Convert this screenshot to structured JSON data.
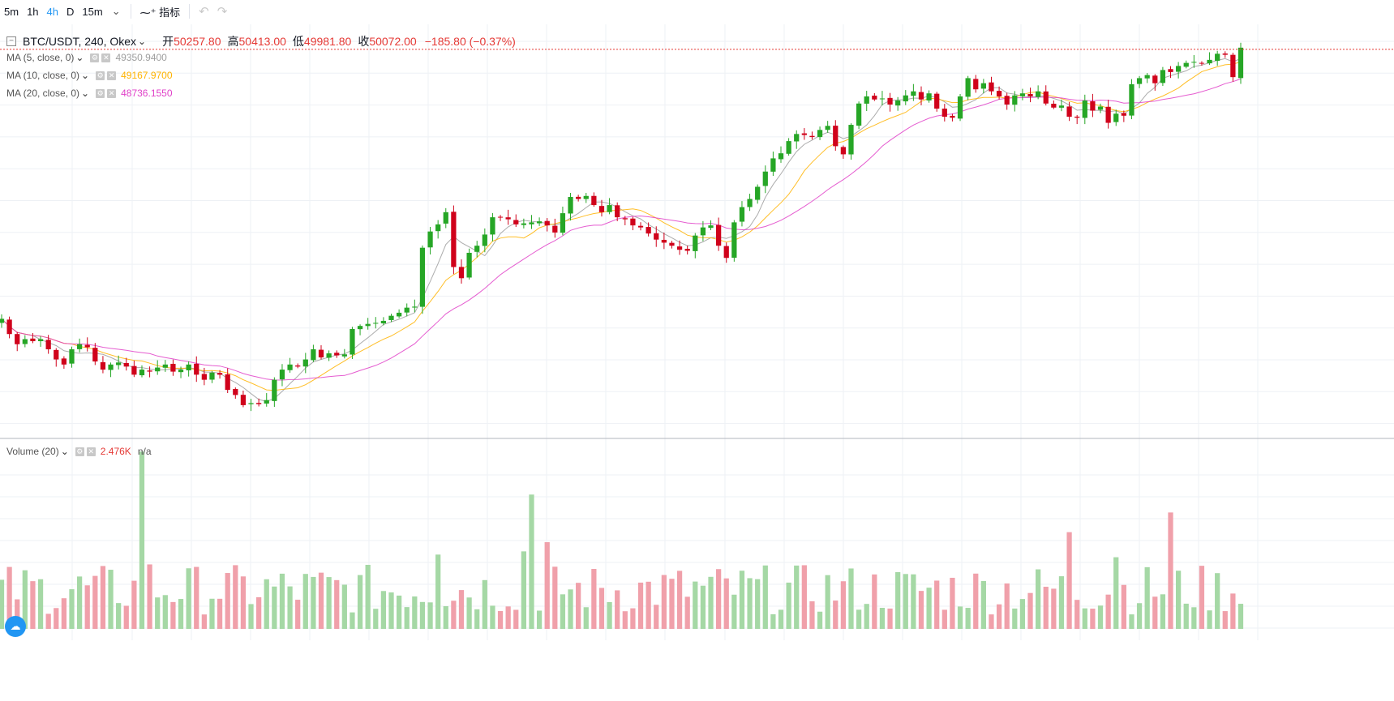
{
  "toolbar": {
    "intervals": [
      "5m",
      "1h",
      "4h",
      "D",
      "15m"
    ],
    "active_interval": "4h",
    "indicators_label": "指标"
  },
  "symbol": {
    "title": "BTC/USDT, 240, Okex",
    "open_label": "开",
    "open": "50257.80",
    "high_label": "高",
    "high": "50413.00",
    "low_label": "低",
    "low": "49981.80",
    "close_label": "收",
    "close": "50072.00",
    "change": "−185.80 (−0.37%)"
  },
  "studies": [
    {
      "label": "MA (5, close, 0)",
      "value": "49350.9400",
      "color": "#9e9e9e"
    },
    {
      "label": "MA (10, close, 0)",
      "value": "49167.9700",
      "color": "#ffb300"
    },
    {
      "label": "MA (20, close, 0)",
      "value": "48736.1550",
      "color": "#e040c8"
    }
  ],
  "volume": {
    "label": "Volume (20)",
    "value": "2.476K",
    "na": "n/a"
  },
  "colors": {
    "up": "#26a626",
    "down": "#d0021b",
    "vol_up": "#a5d8a5",
    "vol_down": "#f0a0aa",
    "last_price_line": "#e53935"
  },
  "chart_data": {
    "type": "candlestick",
    "series_close": [
      50400,
      50250,
      50150,
      50200,
      50180,
      50200,
      50100,
      50000,
      49950,
      50100,
      50150,
      50120,
      49980,
      49900,
      49950,
      49970,
      49930,
      49850,
      49900,
      49880,
      49920,
      49950,
      49880,
      49900,
      49950,
      49850,
      49800,
      49870,
      49850,
      49700,
      49650,
      49550,
      49570,
      49560,
      49600,
      49800,
      49900,
      49950,
      49930,
      50000,
      50100,
      50020,
      50060,
      50040,
      50050,
      50300,
      50330,
      50350,
      50360,
      50380,
      50430,
      50460,
      50510,
      50520,
      51100,
      51260,
      51330,
      51450,
      50910,
      50800,
      51050,
      51120,
      51230,
      51400,
      51400,
      51380,
      51330,
      51340,
      51350,
      51360,
      51320,
      51250,
      51440,
      51600,
      51580,
      51610,
      51520,
      51450,
      51520,
      51400,
      51380,
      51320,
      51300,
      51240,
      51180,
      51150,
      51120,
      51080,
      51070,
      51220,
      51300,
      51320,
      51120,
      51000,
      51350,
      51500,
      51580,
      51700,
      51850,
      51980,
      52030,
      52150,
      52220,
      52210,
      52190,
      52260,
      52300,
      52100,
      52020,
      52310,
      52520,
      52590,
      52560,
      52570,
      52510,
      52550,
      52600,
      52640,
      52560,
      52620,
      52470,
      52390,
      52380,
      52590,
      52770,
      52660,
      52720,
      52640,
      52590,
      52510,
      52600,
      52620,
      52590,
      52640,
      52520,
      52480,
      52500,
      52390,
      52380,
      52550,
      52450,
      52490,
      52330,
      52420,
      52400,
      52710,
      52770,
      52800,
      52720,
      52850,
      52830,
      52890,
      52920,
      52930,
      52920,
      52950,
      53010,
      53000,
      52780,
      53070
    ],
    "x_range_bars": 160,
    "y_range": [
      49350,
      53300
    ],
    "volume_max": "2.476K"
  }
}
